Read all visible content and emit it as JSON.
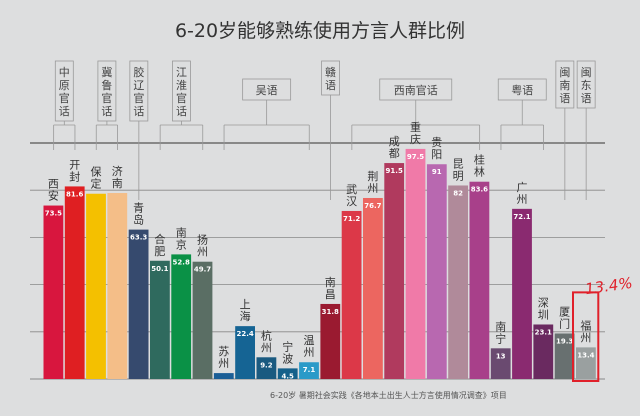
{
  "chart_data": {
    "type": "bar",
    "title": "6-20岁能够熟练使用方言人群比例",
    "xlabel": "",
    "ylabel": "",
    "ylim": [
      0,
      100
    ],
    "grid": true,
    "categories": [
      "西安",
      "开封",
      "保定",
      "济南",
      "青岛",
      "合肥",
      "南京",
      "扬州",
      "苏州",
      "上海",
      "杭州",
      "宁波",
      "温州",
      "南昌",
      "武汉",
      "荆州",
      "成都",
      "重庆",
      "贵阳",
      "昆明",
      "桂林",
      "南宁",
      "广州",
      "深圳",
      "厦门",
      "福州"
    ],
    "values": [
      73.5,
      81.6,
      78.5,
      78.8,
      63.3,
      50.1,
      52.8,
      49.7,
      2.5,
      22.4,
      9.2,
      4.5,
      7.1,
      31.8,
      71.2,
      76.7,
      91.5,
      97.5,
      91,
      82,
      83.6,
      13,
      72.1,
      23.1,
      19.3,
      13.4
    ],
    "value_labels": [
      "73.5",
      "81.6",
      "",
      "",
      "63.3",
      "50.1",
      "52.8",
      "49.7",
      "",
      "22.4",
      "9.2",
      "4.5",
      "7.1",
      "31.8",
      "71.2",
      "76.7",
      "91.5",
      "97.5",
      "91",
      "82",
      "83.6",
      "13",
      "72.1",
      "23.1",
      "19.3",
      "13.4"
    ],
    "colors": [
      "#d8163e",
      "#df1f22",
      "#f4c000",
      "#f4be88",
      "#364a6e",
      "#2f6a5e",
      "#0a9146",
      "#5a6e64",
      "#1a5e96",
      "#156494",
      "#1a5a80",
      "#14608a",
      "#2a9ac8",
      "#9a1a30",
      "#dc3848",
      "#ec6660",
      "#b03a5e",
      "#f07aa8",
      "#b868b0",
      "#b08a9a",
      "#a8408a",
      "#6a4a70",
      "#8a2a70",
      "#6a2a60",
      "#687070",
      "#9aa0a0"
    ],
    "groups": [
      {
        "name": "中原官话",
        "from": 0,
        "to": 1,
        "vertical": true
      },
      {
        "name": "冀鲁官话",
        "from": 2,
        "to": 3,
        "vertical": true
      },
      {
        "name": "胶辽官话",
        "from": 4,
        "to": 4,
        "vertical": true
      },
      {
        "name": "江淮官话",
        "from": 5,
        "to": 7,
        "vertical": true
      },
      {
        "name": "吴语",
        "from": 8,
        "to": 12,
        "vertical": false
      },
      {
        "name": "赣语",
        "from": 13,
        "to": 13,
        "vertical": true
      },
      {
        "name": "西南官话",
        "from": 14,
        "to": 20,
        "vertical": false
      },
      {
        "name": "粤语",
        "from": 21,
        "to": 23,
        "vertical": false
      },
      {
        "name": "闽南语",
        "from": 24,
        "to": 24,
        "vertical": true
      },
      {
        "name": "闽东语",
        "from": 25,
        "to": 25,
        "vertical": true
      }
    ],
    "highlight": {
      "category": "福州",
      "annotation": "13.4%",
      "color": "#e0202a"
    }
  },
  "footer": "6-20岁 暑期社会实践《各地本土出生人士方言使用情况调查》项目"
}
